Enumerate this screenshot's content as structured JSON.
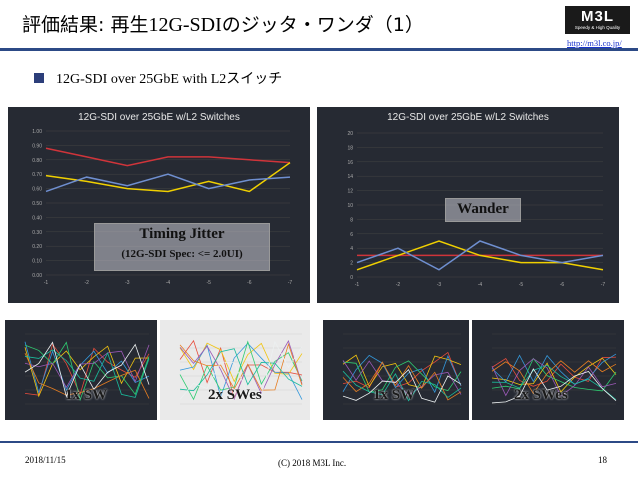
{
  "header": {
    "title_jp1": "評価結果: 再生",
    "title_latin": "12G-SDI",
    "title_jp2": "のジッタ・ワンダ（1）",
    "logo_text": "M3L",
    "logo_tagline": "Speedy & High Quality",
    "url": "http://m3l.co.jp/"
  },
  "bullet": {
    "text": "12G-SDI over 25GbE with L2スイッチ"
  },
  "charts": {
    "jitter": {
      "title": "12G-SDI over 25GbE w/L2 Switches",
      "overlay_title": "Timing Jitter",
      "overlay_sub": "(12G-SDI Spec: <= 2.0UI)",
      "color_a": "#d0343a",
      "color_b": "#f0d000",
      "color_c": "#6f8fd0"
    },
    "wander": {
      "title": "12G-SDI over 25GbE w/L2 Switches",
      "overlay_title": "Wander"
    }
  },
  "small_charts": {
    "labels": [
      "1x SW",
      "2x SWes",
      "1x SW",
      "2x SWes"
    ]
  },
  "footer": {
    "date": "2018/11/15",
    "copyright": "(C) 2018 M3L Inc.",
    "page": "18"
  },
  "chart_data": [
    {
      "type": "line",
      "title": "12G-SDI over 25GbE w/L2 Switches",
      "x": [
        -1,
        -2,
        -3,
        -4,
        -5,
        -6,
        -7
      ],
      "ylim": [
        0,
        1.0
      ],
      "series": [
        {
          "values": [
            0.88,
            0.82,
            0.76,
            0.82,
            0.82,
            0.8,
            0.78
          ]
        },
        {
          "values": [
            0.69,
            0.65,
            0.6,
            0.58,
            0.65,
            0.58,
            0.78
          ]
        },
        {
          "values": [
            0.58,
            0.68,
            0.62,
            0.7,
            0.6,
            0.66,
            0.68
          ]
        }
      ]
    },
    {
      "type": "line",
      "title": "12G-SDI over 25GbE w/L2 Switches",
      "x": [
        -1,
        -2,
        -3,
        -4,
        -5,
        -6,
        -7
      ],
      "ylim": [
        0,
        20
      ],
      "series": [
        {
          "values": [
            3,
            3,
            3,
            3,
            3,
            3,
            3
          ]
        },
        {
          "values": [
            1,
            3,
            5,
            3,
            2,
            2,
            1
          ]
        },
        {
          "values": [
            2,
            4,
            1,
            5,
            3,
            2,
            3
          ]
        }
      ]
    }
  ]
}
